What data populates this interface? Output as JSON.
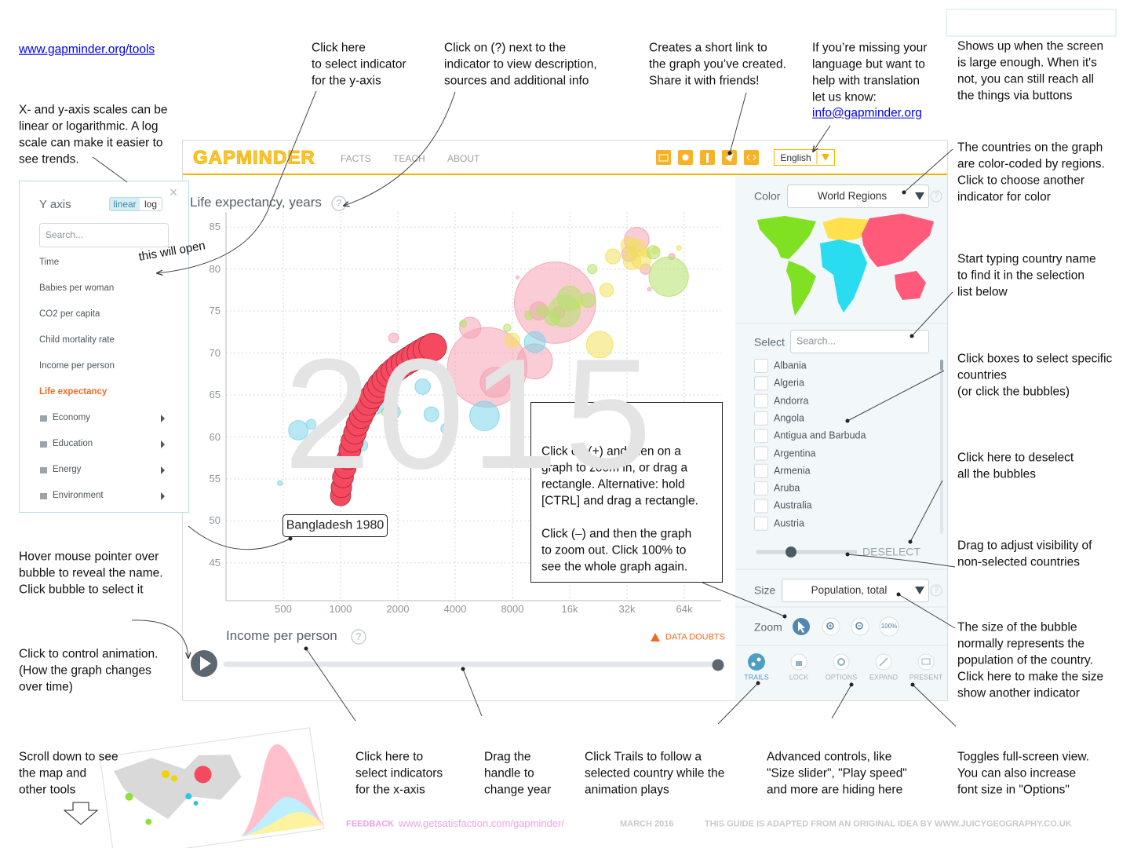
{
  "link": "www.gapminder.org/tools",
  "email": "info@gapminder.org",
  "annotations": [
    [
      "Click here",
      "to select indicator",
      "for the y-axis"
    ],
    [
      "Click on (?) next to the",
      "indicator to view description,",
      "sources and additional info"
    ],
    [
      "Creates a short link to",
      "the graph you’ve created.",
      "Share it with friends!"
    ],
    [
      "If you’re missing your",
      "language but want to",
      "help with translation",
      "let us know:"
    ],
    [
      "Shows up when the screen",
      "is large enough. When it's",
      "not, you can still reach all",
      "the things via buttons"
    ],
    [
      "X- and y-axis scales can be",
      "linear or logarithmic. A log",
      "scale can make it easier to",
      "see trends."
    ],
    [
      "The countries on the graph",
      "are color-coded by regions.",
      "Click to choose another",
      "indicator for color"
    ],
    [
      "Start typing country name",
      "to find it in the selection",
      "list below"
    ],
    [
      "Click boxes to select specific",
      "countries",
      "(or click the bubbles)"
    ],
    [
      "Click here to deselect",
      "all the bubbles"
    ],
    [
      "Drag to adjust visibility of",
      "non-selected countries"
    ],
    [
      "Hover mouse pointer over",
      "bubble to reveal the name.",
      "Click bubble to select it"
    ],
    [
      "Click to control animation.",
      "(How the graph changes",
      "over time)"
    ],
    [
      "The size of the bubble",
      "normally represents the",
      "population of the country.",
      "Click here to make the size",
      "show another indicator"
    ],
    [
      "Scroll down to see",
      "the map and",
      "other tools"
    ],
    [
      "Click here to",
      "select indicators",
      "for the x-axis"
    ],
    [
      "Drag the",
      "handle to",
      "change year"
    ],
    [
      "Click Trails to follow a",
      "selected country while the",
      "animation plays"
    ],
    [
      "Advanced controls, like",
      "\"Size slider\", \"Play speed\"",
      "and more are hiding here"
    ],
    [
      "Toggles full-screen view.",
      "You can also increase",
      "font size in \"Options\""
    ]
  ],
  "zoom_help": [
    [
      "Click on (+) and then on a",
      "graph to zoom in, or drag a",
      "rectangle. Alternative: hold",
      "[CTRL] and drag a rectangle."
    ],
    [
      "Click (–) and then the graph",
      "to zoom out. Click 100% to",
      "see the whole graph again."
    ]
  ],
  "this_will_open": "this will open",
  "app": {
    "logo": "GAPMINDER",
    "nav": [
      "FACTS",
      "TEACH",
      "ABOUT"
    ],
    "language": "English",
    "panel": {
      "color_label": "Color",
      "color_indicator": "World Regions",
      "select_label": "Select",
      "search": "Search...",
      "countries": [
        "Albania",
        "Algeria",
        "Andorra",
        "Angola",
        "Antigua and Barbuda",
        "Argentina",
        "Armenia",
        "Aruba",
        "Australia",
        "Austria"
      ],
      "deselect": "DESELECT",
      "size_label": "Size",
      "size_indicator": "Population, total",
      "zoom_label": "Zoom",
      "zoom_full": "100%",
      "buttons": [
        "TRAILS",
        "LOCK",
        "OPTIONS",
        "EXPAND",
        "PRESENT"
      ]
    },
    "y_menu": {
      "title": "Y axis",
      "scales": [
        "linear",
        "log"
      ],
      "close": "×",
      "search": "Search...",
      "items": [
        "Time",
        "Babies per woman",
        "CO2 per capita",
        "Child mortality rate",
        "Income per person",
        "Life expectancy"
      ],
      "folders": [
        "Economy",
        "Education",
        "Energy",
        "Environment"
      ]
    }
  },
  "chart_data": {
    "type": "bubble",
    "ylabel": "Life expectancy, years",
    "xlabel": "Income per person",
    "help": "?",
    "xscale": "log",
    "xlim": [
      250,
      100000
    ],
    "ylim": [
      40.5,
      86.8
    ],
    "xticks": [
      500,
      1000,
      2000,
      4000,
      8000,
      {
        "value": 16000,
        "label": "16k"
      },
      {
        "value": 32000,
        "label": "32k"
      },
      {
        "value": 64000,
        "label": "64k"
      }
    ],
    "yticks": [
      45,
      50,
      55,
      60,
      65,
      70,
      75,
      80,
      85
    ],
    "grid": true,
    "year": "2015",
    "data_doubts": "DATA DOUBTS",
    "bubble_groups": [
      {
        "color": "#f4a3b5",
        "points": [
          [
            13400,
            76.0,
            1370
          ],
          [
            5900,
            68.3,
            1310
          ],
          [
            36000,
            83.5,
            127
          ],
          [
            10500,
            69.0,
            255
          ],
          [
            6500,
            66.5,
            190
          ],
          [
            33000,
            81.8,
            50
          ],
          [
            4800,
            73.0,
            93
          ],
          [
            11000,
            75.0,
            68
          ],
          [
            2600,
            70.0,
            30
          ],
          [
            1900,
            71.8,
            20
          ],
          [
            40000,
            80.0,
            23
          ],
          [
            55000,
            81.5,
            8
          ],
          [
            14000,
            74.8,
            30
          ],
          [
            42000,
            77.6,
            3
          ],
          [
            8500,
            79.0,
            2
          ]
        ]
      },
      {
        "color": "#f2e05c",
        "points": [
          [
            23000,
            71.0,
            145
          ],
          [
            38000,
            81.2,
            81
          ],
          [
            36000,
            82.5,
            66
          ],
          [
            33000,
            82.8,
            60
          ],
          [
            34000,
            81.0,
            65
          ],
          [
            27000,
            81.5,
            46
          ],
          [
            25000,
            77.5,
            38
          ],
          [
            40000,
            82.0,
            17
          ],
          [
            45000,
            82.2,
            10
          ],
          [
            18000,
            76.0,
            20
          ],
          [
            8000,
            71.5,
            45
          ],
          [
            60000,
            82.5,
            5
          ]
        ]
      },
      {
        "color": "#b5e26a",
        "points": [
          [
            53000,
            79.1,
            321
          ],
          [
            15000,
            75.0,
            206
          ],
          [
            16000,
            76.5,
            125
          ],
          [
            44000,
            82.0,
            36
          ],
          [
            13000,
            74.2,
            48
          ],
          [
            20000,
            76.3,
            43
          ],
          [
            11500,
            75.0,
            31
          ],
          [
            9800,
            74.5,
            16
          ],
          [
            7500,
            73.0,
            11
          ],
          [
            4400,
            73.5,
            10
          ],
          [
            1700,
            63.0,
            10
          ],
          [
            21000,
            80.0,
            18
          ]
        ]
      },
      {
        "color": "#7dd6ea",
        "points": [
          [
            5700,
            62.5,
            180
          ],
          [
            1500,
            64.0,
            100
          ],
          [
            10500,
            71.3,
            91
          ],
          [
            2700,
            66.0,
            48
          ],
          [
            3000,
            62.7,
            45
          ],
          [
            1700,
            65.0,
            50
          ],
          [
            600,
            60.8,
            78
          ],
          [
            1900,
            63.0,
            38
          ],
          [
            700,
            61.5,
            20
          ],
          [
            1300,
            59.0,
            25
          ],
          [
            480,
            54.5,
            5
          ],
          [
            3600,
            61.0,
            25
          ],
          [
            1100,
            60.0,
            15
          ]
        ]
      }
    ],
    "trail": {
      "label": "Bangladesh 1980",
      "color": "#f5495f",
      "points": [
        [
          1000,
          53.0,
          85
        ],
        [
          1010,
          54.0,
          88
        ],
        [
          1030,
          55.2,
          91
        ],
        [
          1060,
          56.3,
          94
        ],
        [
          1090,
          57.4,
          97
        ],
        [
          1120,
          58.5,
          100
        ],
        [
          1150,
          59.5,
          103
        ],
        [
          1190,
          60.5,
          106
        ],
        [
          1230,
          61.5,
          109
        ],
        [
          1280,
          62.4,
          112
        ],
        [
          1330,
          63.2,
          115
        ],
        [
          1390,
          64.0,
          118
        ],
        [
          1460,
          64.8,
          121
        ],
        [
          1530,
          65.5,
          124
        ],
        [
          1610,
          66.2,
          127
        ],
        [
          1700,
          66.8,
          130
        ],
        [
          1800,
          67.4,
          134
        ],
        [
          1910,
          67.9,
          137
        ],
        [
          2030,
          68.4,
          140
        ],
        [
          2160,
          68.8,
          143
        ],
        [
          2300,
          69.2,
          146
        ],
        [
          2460,
          69.6,
          150
        ],
        [
          2640,
          70.0,
          153
        ],
        [
          2840,
          70.4,
          157
        ],
        [
          3050,
          70.7,
          160
        ]
      ]
    }
  },
  "footer": {
    "feedback": "FEEDBACK",
    "feedback_url": "www.getsatisfaction.com/gapminder/",
    "date": "MARCH 2016",
    "credit": "THIS GUIDE IS ADAPTED FROM AN ORIGINAL IDEA BY WWW.JUICYGEOGRAPHY.CO.UK"
  }
}
